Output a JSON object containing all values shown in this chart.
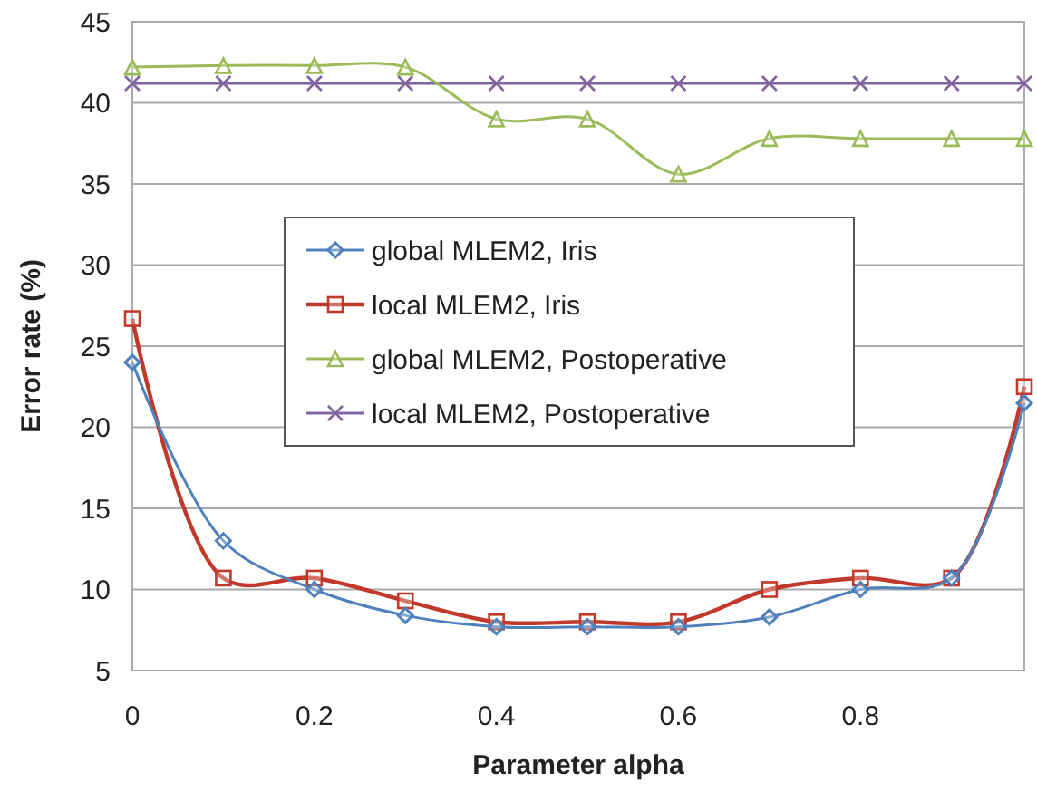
{
  "chart_data": {
    "type": "line",
    "xlabel": "Parameter alpha",
    "ylabel": "Error rate (%)",
    "x": [
      0,
      0.1,
      0.2,
      0.3,
      0.4,
      0.5,
      0.6,
      0.7,
      0.8,
      0.9,
      0.98
    ],
    "xlim": [
      0,
      0.98
    ],
    "xticks": [
      0,
      0.2,
      0.4,
      0.6,
      0.8
    ],
    "ylim": [
      5,
      45
    ],
    "yticks": [
      5,
      10,
      15,
      20,
      25,
      30,
      35,
      40,
      45
    ],
    "grid": "y",
    "legend": "center",
    "series": [
      {
        "name": "global MLEM2, Iris",
        "color": "#4f81bd",
        "marker": "diamond",
        "values": [
          24,
          13,
          10,
          8.4,
          7.7,
          7.7,
          7.7,
          8.3,
          10,
          10.7,
          21.5
        ]
      },
      {
        "name": "local MLEM2, Iris",
        "color": "#c0392b",
        "marker": "square",
        "values": [
          26.7,
          10.7,
          10.7,
          9.3,
          8,
          8,
          8,
          10,
          10.7,
          10.7,
          22.5
        ]
      },
      {
        "name": "global MLEM2, Postoperative",
        "color": "#9bbb59",
        "marker": "triangle",
        "values": [
          42.2,
          42.3,
          42.3,
          42.2,
          39,
          39,
          35.6,
          37.8,
          37.8,
          37.8,
          37.8
        ]
      },
      {
        "name": "local MLEM2, Postoperative",
        "color": "#8064a2",
        "marker": "cross",
        "values": [
          41.2,
          41.2,
          41.2,
          41.2,
          41.2,
          41.2,
          41.2,
          41.2,
          41.2,
          41.2,
          41.2
        ]
      }
    ]
  }
}
